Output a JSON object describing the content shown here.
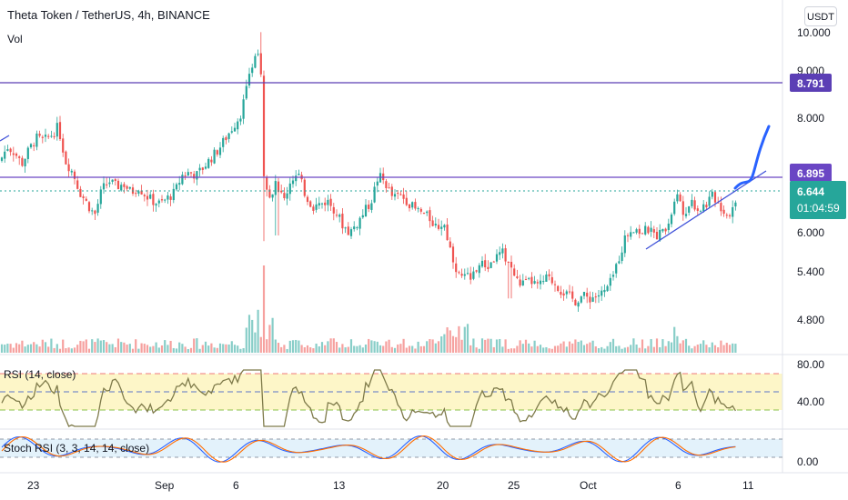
{
  "header": {
    "title": "Theta Token / TetherUS, 4h, BINANCE",
    "volume_label": "Vol",
    "currency": "USDT"
  },
  "indicators": {
    "rsi_label": "RSI (14, close)",
    "stoch_label": "Stoch RSI (3, 3, 14, 14, close)"
  },
  "price_tags": [
    {
      "value": "8.791",
      "color": "#5b3fb5"
    },
    {
      "value": "6.895",
      "color": "#6a46c4"
    },
    {
      "value": "6.644",
      "sub": "01:04:59",
      "color": "#26a69a"
    }
  ],
  "chart_data": {
    "type": "candlestick",
    "pair": "Theta Token / TetherUS",
    "interval": "4h",
    "exchange": "BINANCE",
    "price_ticks": [
      "10.000",
      "9.000",
      "8.000",
      "6.000",
      "5.400",
      "4.800"
    ],
    "rsi_ticks": [
      "80.00",
      "40.00"
    ],
    "stoch_ticks": [
      "0.00"
    ],
    "x_labels": [
      "23",
      "Sep",
      "6",
      "13",
      "20",
      "25",
      "Oct",
      "6",
      "11"
    ],
    "horizontal_levels": [
      8.791,
      6.895
    ],
    "last_price": 6.644,
    "countdown": "01:04:59",
    "price_path": [
      [
        0,
        7.3
      ],
      [
        8,
        7.55
      ],
      [
        16,
        7.45
      ],
      [
        24,
        7.25
      ],
      [
        32,
        7.5
      ],
      [
        40,
        7.7
      ],
      [
        48,
        7.65
      ],
      [
        56,
        7.75
      ],
      [
        64,
        7.9
      ],
      [
        72,
        7.3
      ],
      [
        80,
        7.1
      ],
      [
        88,
        6.75
      ],
      [
        96,
        6.55
      ],
      [
        104,
        6.35
      ],
      [
        112,
        6.8
      ],
      [
        120,
        6.95
      ],
      [
        128,
        6.85
      ],
      [
        136,
        6.9
      ],
      [
        144,
        6.75
      ],
      [
        152,
        6.85
      ],
      [
        160,
        6.7
      ],
      [
        168,
        6.6
      ],
      [
        176,
        6.55
      ],
      [
        184,
        6.65
      ],
      [
        192,
        6.75
      ],
      [
        200,
        7.05
      ],
      [
        208,
        7.1
      ],
      [
        216,
        7.05
      ],
      [
        224,
        7.2
      ],
      [
        232,
        7.35
      ],
      [
        240,
        7.5
      ],
      [
        248,
        7.7
      ],
      [
        256,
        7.9
      ],
      [
        264,
        8.1
      ],
      [
        272,
        8.6
      ],
      [
        280,
        9.2
      ],
      [
        286,
        9.3
      ],
      [
        290,
        7.1
      ],
      [
        296,
        6.7
      ],
      [
        304,
        6.9
      ],
      [
        312,
        6.6
      ],
      [
        320,
        7.0
      ],
      [
        328,
        7.05
      ],
      [
        336,
        6.7
      ],
      [
        344,
        6.5
      ],
      [
        352,
        6.55
      ],
      [
        360,
        6.6
      ],
      [
        368,
        6.45
      ],
      [
        376,
        6.2
      ],
      [
        384,
        6.05
      ],
      [
        392,
        6.2
      ],
      [
        400,
        6.4
      ],
      [
        408,
        6.6
      ],
      [
        416,
        7.05
      ],
      [
        424,
        6.9
      ],
      [
        432,
        6.65
      ],
      [
        440,
        6.7
      ],
      [
        448,
        6.6
      ],
      [
        456,
        6.45
      ],
      [
        464,
        6.4
      ],
      [
        472,
        6.3
      ],
      [
        480,
        6.15
      ],
      [
        488,
        6.2
      ],
      [
        496,
        5.7
      ],
      [
        504,
        5.3
      ],
      [
        512,
        5.25
      ],
      [
        520,
        5.35
      ],
      [
        528,
        5.5
      ],
      [
        536,
        5.45
      ],
      [
        544,
        5.6
      ],
      [
        552,
        5.7
      ],
      [
        560,
        5.5
      ],
      [
        568,
        5.2
      ],
      [
        576,
        5.15
      ],
      [
        584,
        5.2
      ],
      [
        592,
        5.1
      ],
      [
        600,
        5.25
      ],
      [
        608,
        5.2
      ],
      [
        616,
        5.05
      ],
      [
        624,
        4.95
      ],
      [
        632,
        4.85
      ],
      [
        640,
        4.95
      ],
      [
        648,
        4.9
      ],
      [
        656,
        4.95
      ],
      [
        664,
        5.0
      ],
      [
        672,
        5.2
      ],
      [
        680,
        5.6
      ],
      [
        688,
        6.0
      ],
      [
        696,
        6.15
      ],
      [
        704,
        6.05
      ],
      [
        712,
        6.1
      ],
      [
        720,
        6.0
      ],
      [
        728,
        6.05
      ],
      [
        736,
        6.3
      ],
      [
        744,
        6.7
      ],
      [
        752,
        6.4
      ],
      [
        760,
        6.6
      ],
      [
        768,
        6.45
      ],
      [
        776,
        6.55
      ],
      [
        784,
        6.7
      ],
      [
        792,
        6.5
      ],
      [
        800,
        6.35
      ],
      [
        808,
        6.55
      ],
      [
        812,
        6.64
      ]
    ]
  }
}
